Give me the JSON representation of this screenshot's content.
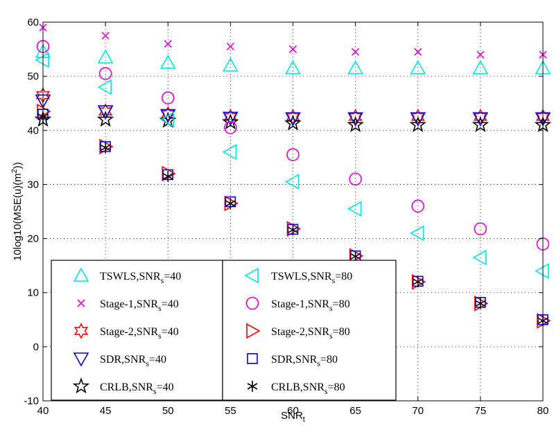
{
  "chart_data": {
    "type": "scatter",
    "xlabel": "SNR",
    "xlabel_sub": "t",
    "ylabel_pre": "10log10(MSE(u)(m",
    "ylabel_sup": "2",
    "ylabel_post": "))",
    "xlim": [
      40,
      80
    ],
    "ylim": [
      -10,
      60
    ],
    "xticks": [
      40,
      45,
      50,
      55,
      60,
      65,
      70,
      75,
      80
    ],
    "yticks": [
      -10,
      0,
      10,
      20,
      30,
      40,
      50,
      60
    ],
    "grid": true,
    "legend_placement": "lower-left, two boxes",
    "x": [
      40,
      45,
      50,
      55,
      60,
      65,
      70,
      75,
      80
    ],
    "series": [
      {
        "name": "TSWLS,SNR",
        "sub": "s",
        "suffix": "=40",
        "marker": "triangle-up",
        "color": "#00e5e5",
        "legend_col": 0,
        "values": [
          54.5,
          53.5,
          52.5,
          52,
          51.5,
          51.5,
          51.5,
          51.5,
          51.5
        ]
      },
      {
        "name": "Stage-1,SNR",
        "sub": "s",
        "suffix": "=40",
        "marker": "x",
        "color": "#e000e0",
        "legend_col": 0,
        "values": [
          59,
          57.5,
          56,
          55.5,
          55,
          54.5,
          54.5,
          54,
          54
        ]
      },
      {
        "name": "Stage-2,SNR",
        "sub": "s",
        "suffix": "=40",
        "marker": "hexagram",
        "color": "#ff0000",
        "legend_col": 0,
        "values": [
          46.5,
          43.5,
          43,
          42.5,
          42.5,
          42.5,
          42.5,
          42.5,
          42.5
        ]
      },
      {
        "name": "SDR,SNR",
        "sub": "s",
        "suffix": "=40",
        "marker": "triangle-down",
        "color": "#0000e0",
        "legend_col": 0,
        "values": [
          45.5,
          43.5,
          42.8,
          42.3,
          42.2,
          42.2,
          42.2,
          42.2,
          42.2
        ]
      },
      {
        "name": "CRLB,SNR",
        "sub": "s",
        "suffix": "=40",
        "marker": "pentagram",
        "color": "#000000",
        "legend_col": 0,
        "values": [
          42,
          42,
          41.8,
          41.5,
          41.3,
          41,
          41,
          41,
          41
        ]
      },
      {
        "name": "TSWLS,SNR",
        "sub": "s",
        "suffix": "=80",
        "marker": "triangle-left",
        "color": "#00e5e5",
        "legend_col": 1,
        "values": [
          53,
          48,
          42,
          36,
          30.5,
          25.5,
          21,
          16.5,
          14
        ]
      },
      {
        "name": "Stage-1,SNR",
        "sub": "s",
        "suffix": "=80",
        "marker": "circle",
        "color": "#e000e0",
        "legend_col": 1,
        "values": [
          55.5,
          50.5,
          46,
          40.5,
          35.5,
          31,
          26,
          21.8,
          19
        ]
      },
      {
        "name": "Stage-2,SNR",
        "sub": "s",
        "suffix": "=80",
        "marker": "triangle-right",
        "color": "#ff0000",
        "legend_col": 1,
        "values": [
          43.5,
          37,
          32,
          26.5,
          21.8,
          16.8,
          12,
          8,
          4.8
        ]
      },
      {
        "name": "SDR,SNR",
        "sub": "s",
        "suffix": "=80",
        "marker": "square",
        "color": "#0000e0",
        "legend_col": 1,
        "values": [
          43,
          37,
          31.8,
          26.8,
          21.7,
          16.8,
          12.1,
          8.2,
          5
        ]
      },
      {
        "name": "CRLB,SNR",
        "sub": "s",
        "suffix": "=80",
        "marker": "asterisk",
        "color": "#000000",
        "legend_col": 1,
        "values": [
          42.5,
          36.8,
          31.5,
          26.5,
          21.6,
          16.7,
          12,
          8,
          4.8
        ]
      }
    ]
  }
}
